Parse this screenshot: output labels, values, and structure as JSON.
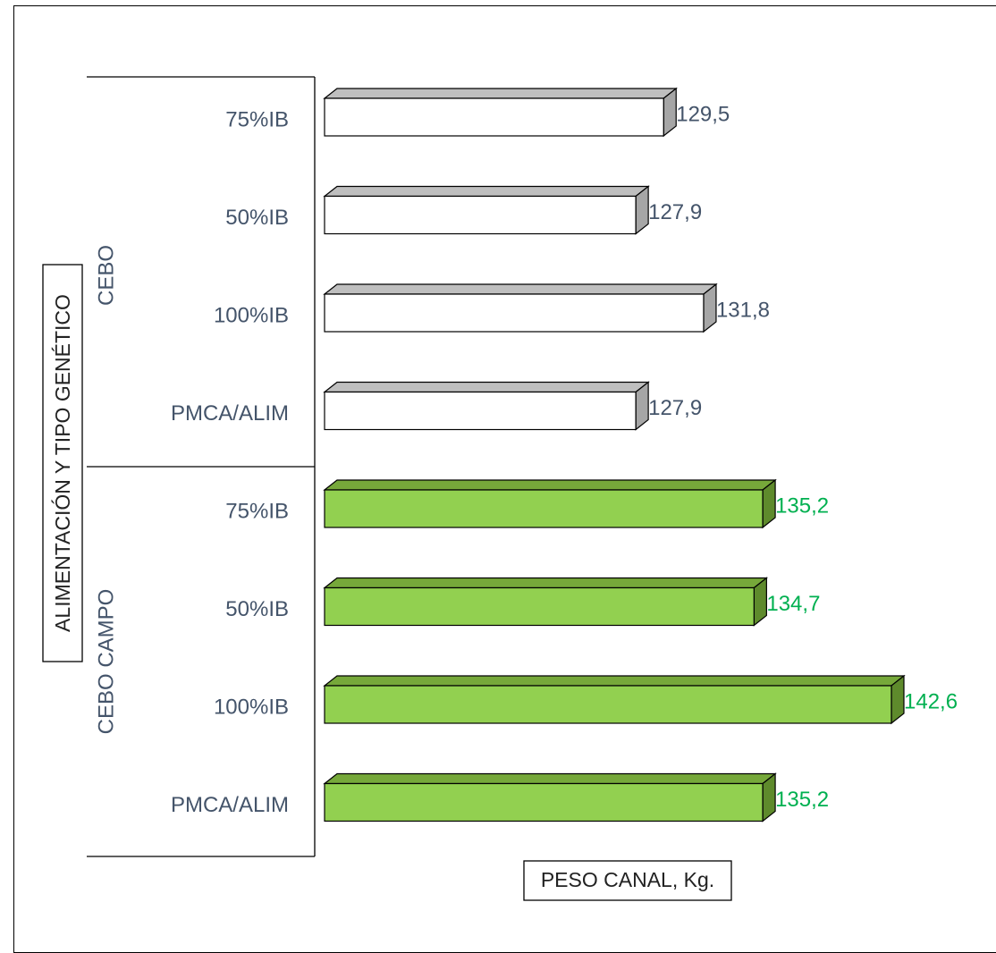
{
  "chart_data": {
    "type": "bar",
    "orientation": "horizontal",
    "style": "3d",
    "xlabel": "PESO CANAL, Kg.",
    "ylabel": "ALIMENTACIÓN Y TIPO GENÉTICO",
    "xlim": [
      110,
      145
    ],
    "groups": [
      {
        "name": "CEBO",
        "color": "#ffffff",
        "side_color": "#a6a6a6",
        "label_color": "#44546a",
        "categories": [
          "75%IB",
          "50%IB",
          "100%IB",
          "PMCA/ALIM"
        ],
        "values": [
          129.5,
          127.9,
          131.8,
          127.9
        ],
        "value_labels": [
          "129,5",
          "127,9",
          "131,8",
          "127,9"
        ]
      },
      {
        "name": "CEBO CAMPO",
        "color": "#92d050",
        "side_color": "#5e8a2c",
        "label_color": "#00b050",
        "categories": [
          "75%IB",
          "50%IB",
          "100%IB",
          "PMCA/ALIM"
        ],
        "values": [
          135.2,
          134.7,
          142.6,
          135.2
        ],
        "value_labels": [
          "135,2",
          "134,7",
          "142,6",
          "135,2"
        ]
      }
    ]
  }
}
